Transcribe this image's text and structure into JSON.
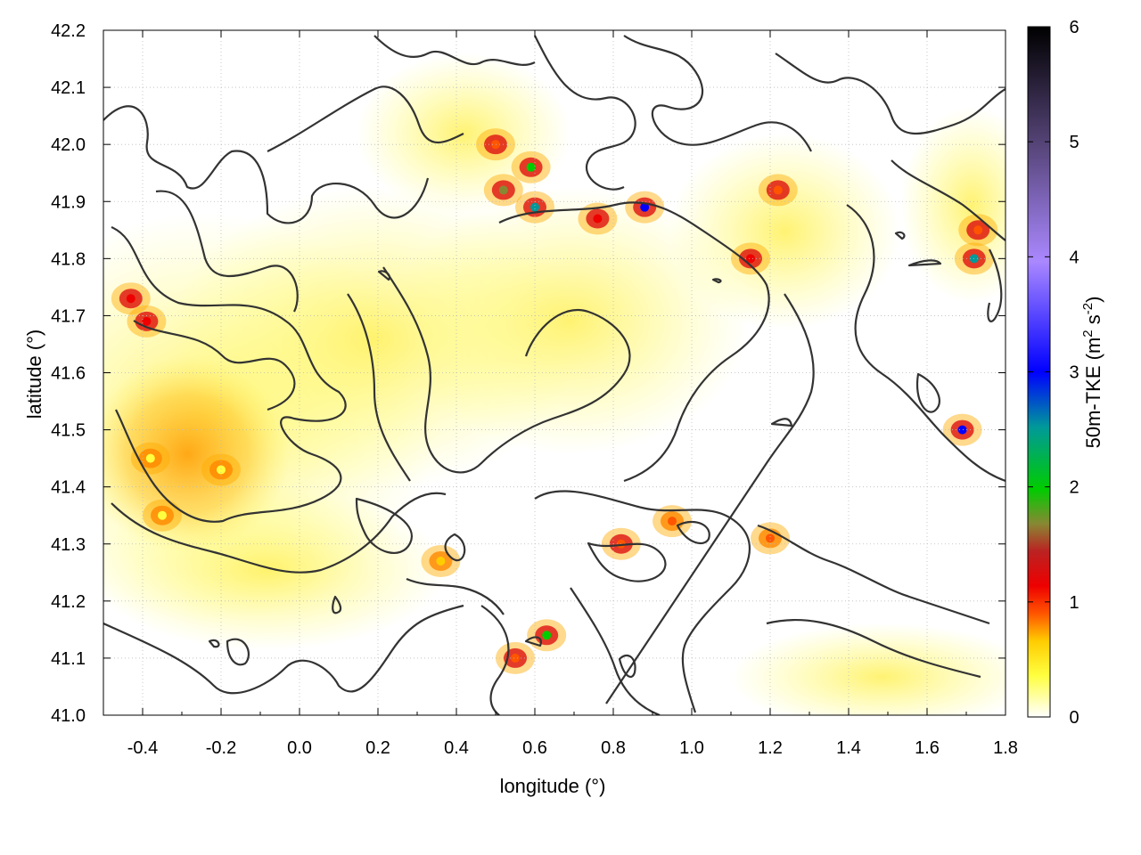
{
  "chart_data": {
    "type": "heatmap",
    "title": "",
    "xlabel": "longitude (°)",
    "ylabel": "latitude (°)",
    "xlim": [
      -0.5,
      1.8
    ],
    "ylim": [
      41.0,
      42.2
    ],
    "x_ticks": [
      "-0.4",
      "-0.2",
      "0.0",
      "0.2",
      "0.4",
      "0.6",
      "0.8",
      "1.0",
      "1.2",
      "1.4",
      "1.6",
      "1.8"
    ],
    "x_tick_values": [
      -0.4,
      -0.2,
      0.0,
      0.2,
      0.4,
      0.6,
      0.8,
      1.0,
      1.2,
      1.4,
      1.6,
      1.8
    ],
    "y_ticks": [
      "41.0",
      "41.1",
      "41.2",
      "41.3",
      "41.4",
      "41.5",
      "41.6",
      "41.7",
      "41.8",
      "41.9",
      "42.0",
      "42.1",
      "42.2"
    ],
    "y_tick_values": [
      41.0,
      41.1,
      41.2,
      41.3,
      41.4,
      41.5,
      41.6,
      41.7,
      41.8,
      41.9,
      42.0,
      42.1,
      42.2
    ],
    "grid": true,
    "colorbar": {
      "label_main": "50m-TKE (m",
      "label_sup1": "2",
      "label_mid": " s",
      "label_sup2": "-2",
      "label_end": ")",
      "range": [
        0,
        6
      ],
      "ticks": [
        "0",
        "1",
        "2",
        "3",
        "4",
        "5",
        "6"
      ],
      "tick_values": [
        0,
        1,
        2,
        3,
        4,
        5,
        6
      ],
      "colors": [
        "#ffffff",
        "#ffff00",
        "#ffaa00",
        "#ff2200",
        "#bb1a1a",
        "#00cc00",
        "#0000ff",
        "#aa77ff",
        "#553377",
        "#000000"
      ]
    },
    "hotspots": [
      {
        "x": -0.43,
        "y": 41.73,
        "v": 1.2
      },
      {
        "x": -0.39,
        "y": 41.69,
        "v": 1.3
      },
      {
        "x": -0.38,
        "y": 41.45,
        "v": 0.55
      },
      {
        "x": -0.35,
        "y": 41.35,
        "v": 0.6
      },
      {
        "x": -0.2,
        "y": 41.43,
        "v": 0.4
      },
      {
        "x": 0.5,
        "y": 42.0,
        "v": 1.1
      },
      {
        "x": 0.52,
        "y": 41.92,
        "v": 1.8
      },
      {
        "x": 0.6,
        "y": 41.89,
        "v": 2.8
      },
      {
        "x": 0.59,
        "y": 41.96,
        "v": 2.0
      },
      {
        "x": 0.88,
        "y": 41.89,
        "v": 3.6
      },
      {
        "x": 0.76,
        "y": 41.87,
        "v": 1.2
      },
      {
        "x": 1.22,
        "y": 41.92,
        "v": 1.1
      },
      {
        "x": 1.15,
        "y": 41.8,
        "v": 1.2
      },
      {
        "x": 1.73,
        "y": 41.85,
        "v": 1.0
      },
      {
        "x": 1.69,
        "y": 41.5,
        "v": 3.2
      },
      {
        "x": 0.63,
        "y": 41.14,
        "v": 2.2
      },
      {
        "x": 0.55,
        "y": 41.1,
        "v": 1.0
      },
      {
        "x": 0.36,
        "y": 41.27,
        "v": 0.8
      },
      {
        "x": 0.95,
        "y": 41.34,
        "v": 0.9
      },
      {
        "x": 0.82,
        "y": 41.3,
        "v": 1.0
      },
      {
        "x": 1.2,
        "y": 41.31,
        "v": 0.9
      },
      {
        "x": 1.72,
        "y": 41.8,
        "v": 2.5
      }
    ]
  }
}
